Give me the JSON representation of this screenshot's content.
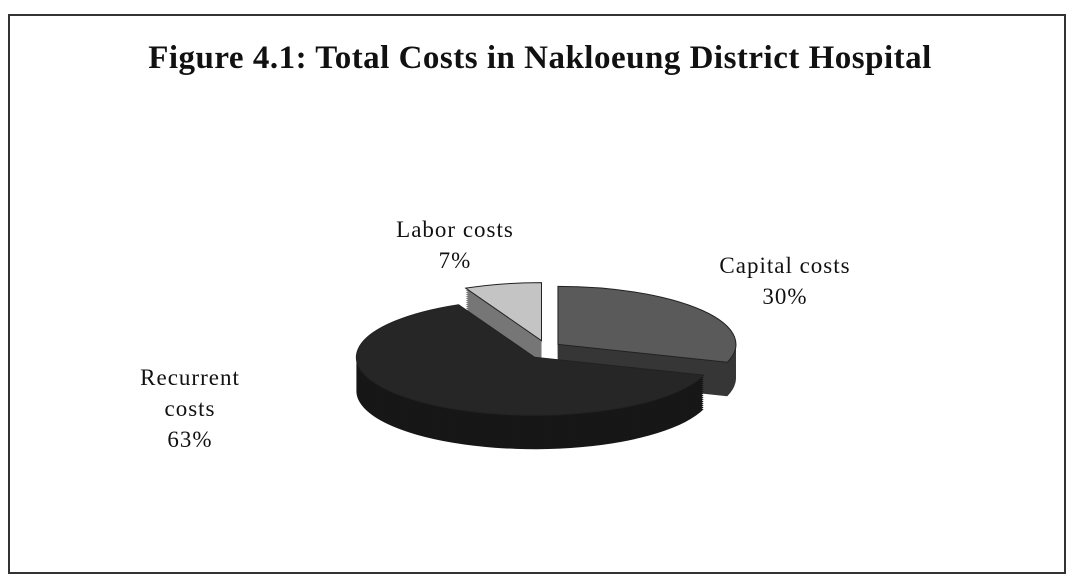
{
  "chart_data": {
    "type": "pie",
    "title": "Figure 4.1: Total Costs in Nakloeung District Hospital",
    "categories": [
      "Capital costs",
      "Labor costs",
      "Recurrent costs"
    ],
    "values": [
      30,
      7,
      63
    ],
    "value_labels": [
      "30%",
      "7%",
      "63%"
    ],
    "colors": [
      "#5a5a5a",
      "#c4c4c4",
      "#262626"
    ]
  }
}
